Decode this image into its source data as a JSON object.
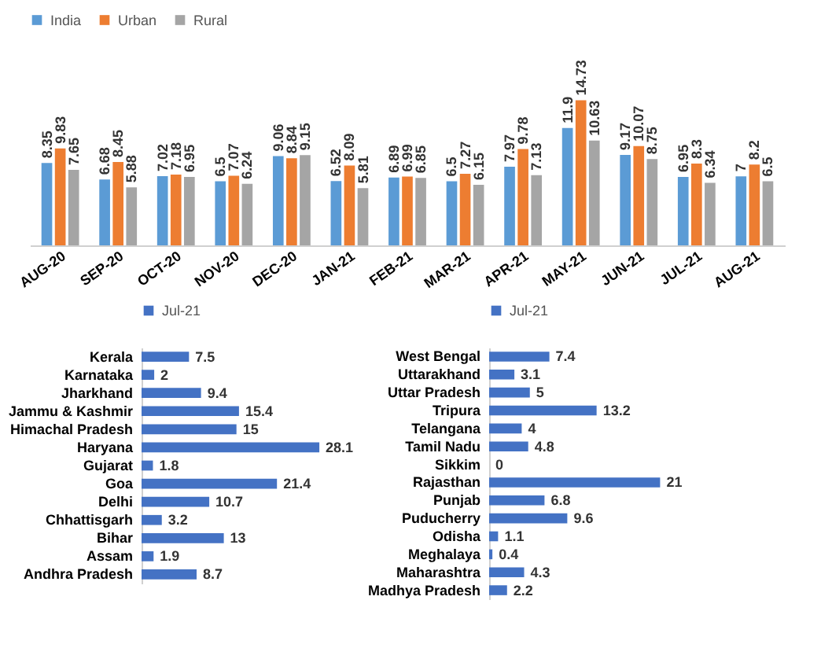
{
  "chart_data": [
    {
      "type": "bar",
      "categories": [
        "AUG-20",
        "SEP-20",
        "OCT-20",
        "NOV-20",
        "DEC-20",
        "JAN-21",
        "FEB-21",
        "MAR-21",
        "APR-21",
        "MAY-21",
        "JUN-21",
        "JUL-21",
        "AUG-21"
      ],
      "series": [
        {
          "name": "India",
          "color": "#5b9bd5",
          "values": [
            8.35,
            6.68,
            7.02,
            6.5,
            9.06,
            6.52,
            6.89,
            6.5,
            7.97,
            11.9,
            9.17,
            6.95,
            7
          ]
        },
        {
          "name": "Urban",
          "color": "#ed7d31",
          "values": [
            9.83,
            8.45,
            7.18,
            7.07,
            8.84,
            8.09,
            6.99,
            7.27,
            9.78,
            14.73,
            10.07,
            8.3,
            8.2
          ]
        },
        {
          "name": "Rural",
          "color": "#a5a5a5",
          "values": [
            7.65,
            5.88,
            6.95,
            6.24,
            9.15,
            5.81,
            6.85,
            6.15,
            7.13,
            10.63,
            8.75,
            6.34,
            6.5
          ]
        }
      ],
      "data_labels": true,
      "legend": "top",
      "tick_labels": "x"
    },
    {
      "type": "bar",
      "orientation": "horizontal",
      "categories": [
        "Kerala",
        "Karnataka",
        "Jharkhand",
        "Jammu & Kashmir",
        "Himachal Pradesh",
        "Haryana",
        "Gujarat",
        "Goa",
        "Delhi",
        "Chhattisgarh",
        "Bihar",
        "Assam",
        "Andhra Pradesh"
      ],
      "series": [
        {
          "name": "Jul-21",
          "color": "#4472c4",
          "values": [
            7.5,
            2,
            9.4,
            15.4,
            15,
            28.1,
            1.8,
            21.4,
            10.7,
            3.2,
            13,
            1.9,
            8.7
          ]
        }
      ],
      "data_labels": true,
      "legend": "top",
      "tick_labels": "y"
    },
    {
      "type": "bar",
      "orientation": "horizontal",
      "categories": [
        "West Bengal",
        "Uttarakhand",
        "Uttar Pradesh",
        "Tripura",
        "Telangana",
        "Tamil Nadu",
        "Sikkim",
        "Rajasthan",
        "Punjab",
        "Puducherry",
        "Odisha",
        "Meghalaya",
        "Maharashtra",
        "Madhya Pradesh"
      ],
      "series": [
        {
          "name": "Jul-21",
          "color": "#4472c4",
          "values": [
            7.4,
            3.1,
            5,
            13.2,
            4,
            4.8,
            0,
            21,
            6.8,
            9.6,
            1.1,
            0.4,
            4.3,
            2.2
          ]
        }
      ],
      "data_labels": true,
      "legend": "top",
      "tick_labels": "y"
    }
  ]
}
